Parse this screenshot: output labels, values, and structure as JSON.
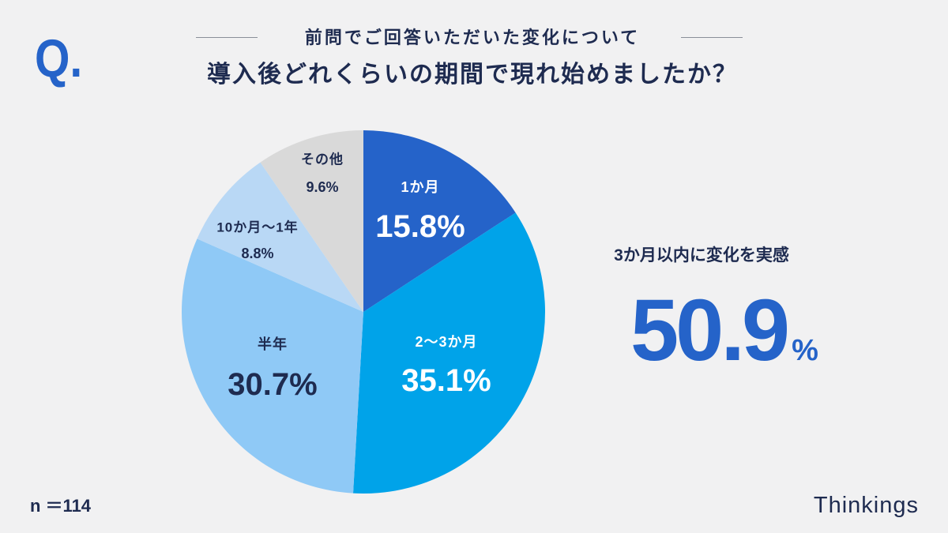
{
  "header": {
    "q_mark": "Q.",
    "subtitle": "前問でご回答いただいた変化について",
    "title": "導入後どれくらいの期間で現れ始めましたか？"
  },
  "chart_data": {
    "type": "pie",
    "categories": [
      "1か月",
      "2〜3か月",
      "半年",
      "10か月〜1年",
      "その他"
    ],
    "values": [
      15.8,
      35.1,
      30.7,
      8.8,
      9.6
    ],
    "unit": "%",
    "colors": [
      "#2563c9",
      "#00a3e9",
      "#8fc9f6",
      "#b9d8f5",
      "#d9d9d9"
    ]
  },
  "highlight": {
    "label": "3か月以内に変化を実感",
    "value": "50.9",
    "unit": "%"
  },
  "footer": {
    "sample_size": "n ＝114",
    "brand": "Thinkings"
  },
  "theme": {
    "accent": "#2563c9",
    "text": "#1e2b50",
    "background": "#f1f1f2"
  }
}
